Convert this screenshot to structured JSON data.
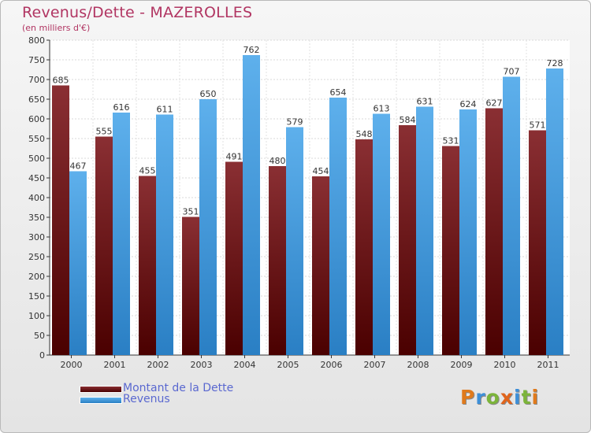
{
  "title": "Revenus/Dette - MAZEROLLES",
  "subtitle": "(en milliers d'€)",
  "colors": {
    "title": "#b13562",
    "debt": "#7a1f24",
    "revenue": "#4a9fe0",
    "legend_text": "#5a68d0"
  },
  "legend": [
    {
      "label": "Montant de la Dette",
      "color": "#6b1414"
    },
    {
      "label": "Revenus",
      "color": "#4aa3e6"
    }
  ],
  "logo": {
    "text": "Proxiti",
    "letters": [
      "P",
      "r",
      "o",
      "x",
      "i",
      "t",
      "i"
    ]
  },
  "chart_data": {
    "type": "bar",
    "categories": [
      "2000",
      "2001",
      "2002",
      "2003",
      "2004",
      "2005",
      "2006",
      "2007",
      "2008",
      "2009",
      "2010",
      "2011"
    ],
    "series": [
      {
        "name": "Montant de la Dette",
        "values": [
          685,
          555,
          455,
          351,
          491,
          480,
          454,
          548,
          584,
          531,
          627,
          571
        ]
      },
      {
        "name": "Revenus",
        "values": [
          467,
          616,
          611,
          650,
          762,
          579,
          654,
          613,
          631,
          624,
          707,
          728
        ]
      }
    ],
    "ylim": [
      0,
      800
    ],
    "ytick_step": 50,
    "yticks": [
      "0",
      "50",
      "100",
      "150",
      "200",
      "250",
      "300",
      "350",
      "400",
      "450",
      "500",
      "550",
      "600",
      "650",
      "700",
      "750",
      "800"
    ],
    "grid": true,
    "legend_position": "bottom-left"
  }
}
